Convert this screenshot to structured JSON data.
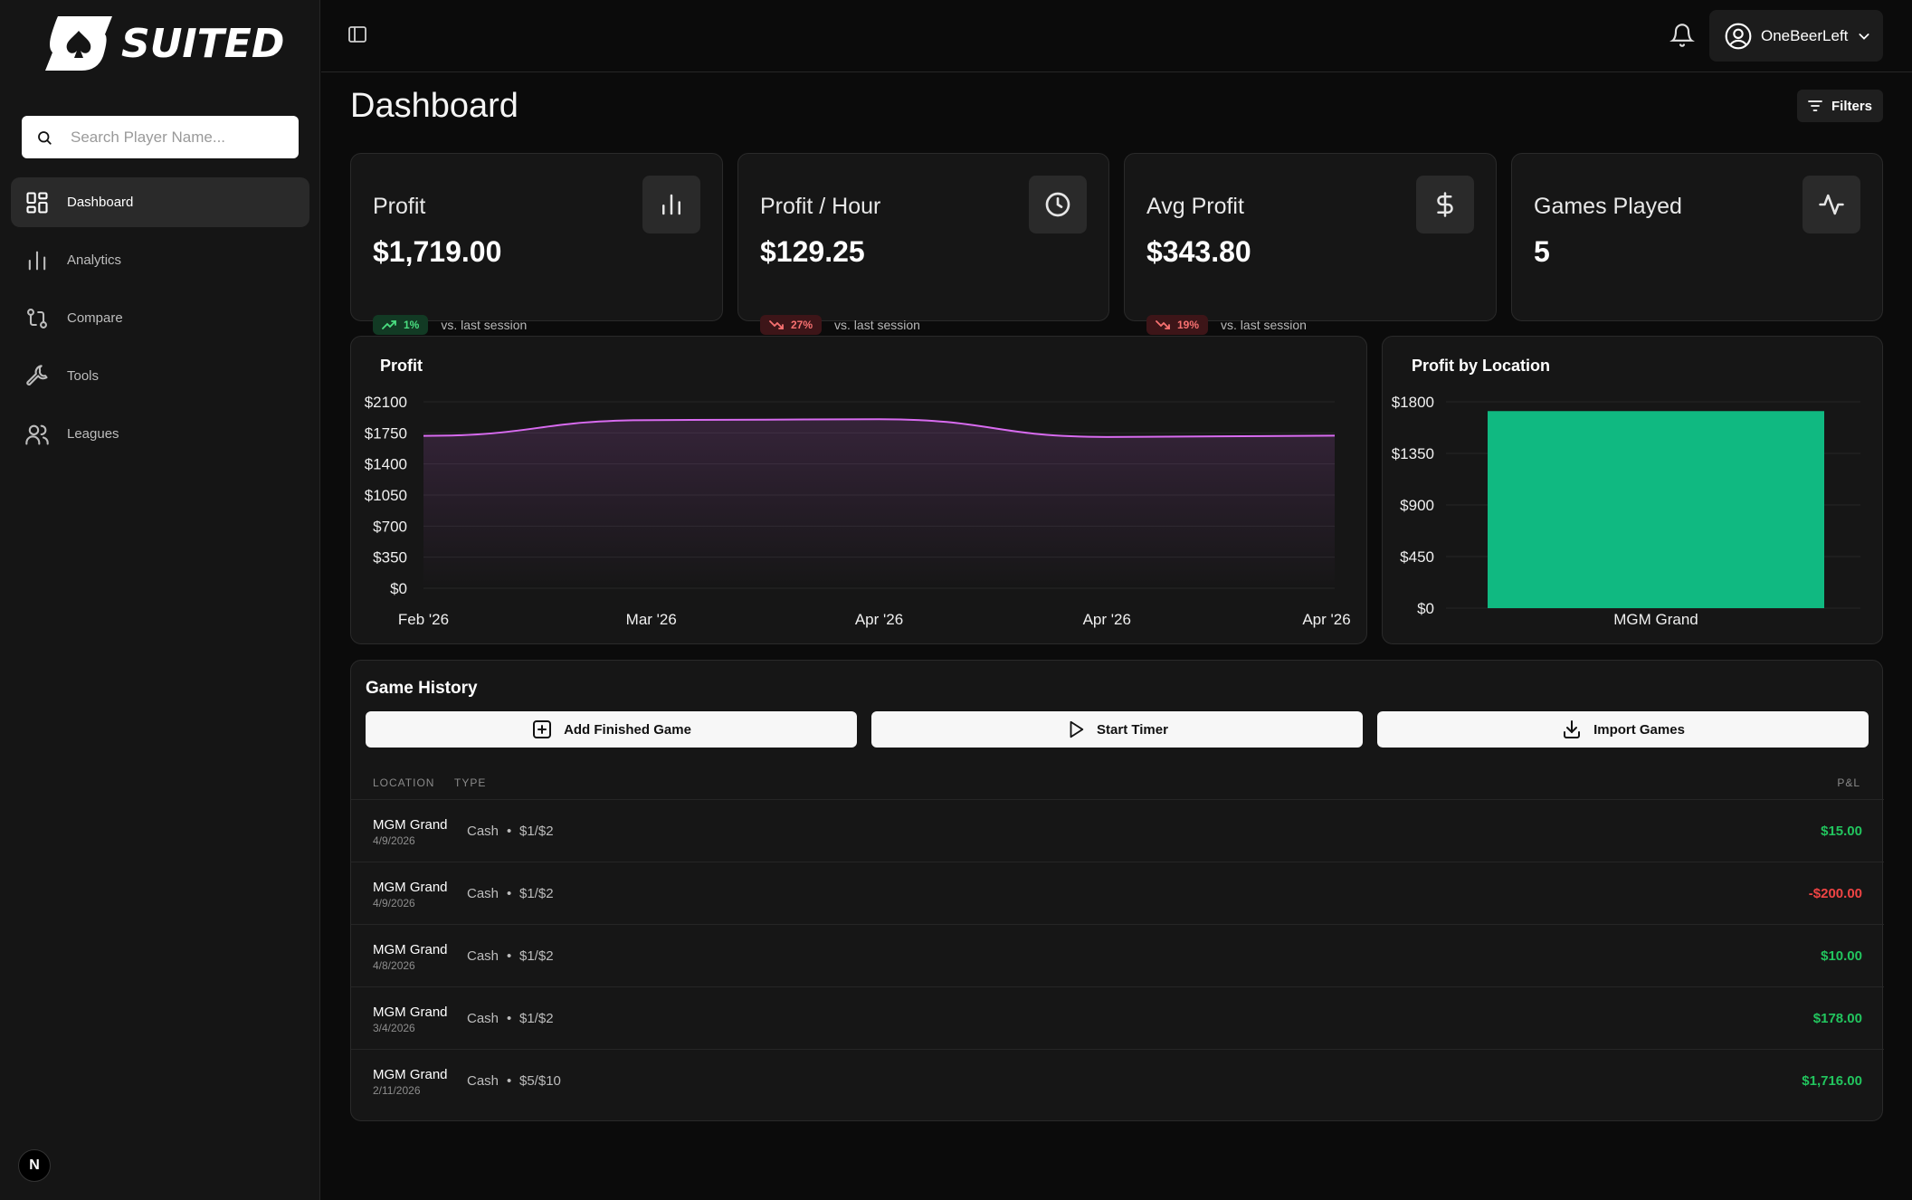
{
  "app": {
    "logo_text": "SUITED"
  },
  "sidebar": {
    "search_placeholder": "Search Player Name...",
    "items": [
      {
        "label": "Dashboard",
        "icon": "dashboard-icon",
        "active": true
      },
      {
        "label": "Analytics",
        "icon": "bar-chart-icon",
        "active": false
      },
      {
        "label": "Compare",
        "icon": "git-compare-icon",
        "active": false
      },
      {
        "label": "Tools",
        "icon": "wrench-icon",
        "active": false
      },
      {
        "label": "Leagues",
        "icon": "users-icon",
        "active": false
      }
    ],
    "footer_badge": "N"
  },
  "header": {
    "username": "OneBeerLeft"
  },
  "page": {
    "title": "Dashboard",
    "filters_label": "Filters"
  },
  "stats": [
    {
      "label": "Profit",
      "value": "$1,719.00",
      "change": "1%",
      "direction": "up",
      "compare": "vs. last session",
      "icon": "bar-chart-icon"
    },
    {
      "label": "Profit / Hour",
      "value": "$129.25",
      "change": "27%",
      "direction": "down",
      "compare": "vs. last session",
      "icon": "clock-icon"
    },
    {
      "label": "Avg Profit",
      "value": "$343.80",
      "change": "19%",
      "direction": "down",
      "compare": "vs. last session",
      "icon": "dollar-icon"
    },
    {
      "label": "Games Played",
      "value": "5",
      "icon": "activity-icon"
    }
  ],
  "chart_data": [
    {
      "type": "area",
      "title": "Profit",
      "x": [
        "Feb '26",
        "Mar '26",
        "Apr '26",
        "Apr '26",
        "Apr '26"
      ],
      "values": [
        1716,
        1894,
        1904,
        1704,
        1719
      ],
      "ylim": [
        0,
        2100
      ],
      "yticks": [
        "$2100",
        "$1750",
        "$1400",
        "$1050",
        "$700",
        "$350",
        "$0"
      ],
      "color": "#d86bf0",
      "grid": true
    },
    {
      "type": "bar",
      "title": "Profit by Location",
      "categories": [
        "MGM Grand"
      ],
      "values": [
        1719
      ],
      "ylim": [
        0,
        1800
      ],
      "yticks": [
        "$1800",
        "$1350",
        "$900",
        "$450",
        "$0"
      ],
      "color": "#10b981",
      "grid": true
    }
  ],
  "game_history": {
    "title": "Game History",
    "buttons": [
      {
        "label": "Add Finished Game",
        "icon": "plus-square-icon"
      },
      {
        "label": "Start Timer",
        "icon": "play-icon"
      },
      {
        "label": "Import Games",
        "icon": "download-icon"
      }
    ],
    "columns": {
      "location": "LOCATION",
      "type": "TYPE",
      "pnl": "P&L"
    },
    "rows": [
      {
        "location": "MGM Grand",
        "date": "4/9/2026",
        "type": "Cash",
        "stakes": "$1/$2",
        "pnl": "$15.00",
        "positive": true
      },
      {
        "location": "MGM Grand",
        "date": "4/9/2026",
        "type": "Cash",
        "stakes": "$1/$2",
        "pnl": "-$200.00",
        "positive": false
      },
      {
        "location": "MGM Grand",
        "date": "4/8/2026",
        "type": "Cash",
        "stakes": "$1/$2",
        "pnl": "$10.00",
        "positive": true
      },
      {
        "location": "MGM Grand",
        "date": "3/4/2026",
        "type": "Cash",
        "stakes": "$1/$2",
        "pnl": "$178.00",
        "positive": true
      },
      {
        "location": "MGM Grand",
        "date": "2/11/2026",
        "type": "Cash",
        "stakes": "$5/$10",
        "pnl": "$1,716.00",
        "positive": true
      }
    ]
  }
}
